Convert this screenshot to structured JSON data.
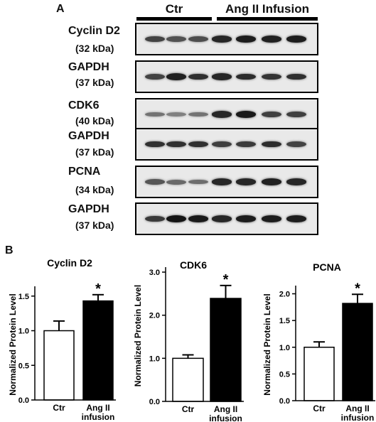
{
  "panelA": {
    "label": "A",
    "groups": [
      {
        "label": "Ctr"
      },
      {
        "label": "Ang II Infusion"
      }
    ],
    "blots": [
      {
        "name": "Cyclin D2",
        "kda": "(32 kDa)",
        "bands": [
          0.7,
          0.62,
          0.64,
          0.85,
          0.9,
          0.88,
          0.9
        ]
      },
      {
        "name": "GAPDH",
        "kda": "(37 kDa)",
        "bands": [
          0.7,
          0.88,
          0.8,
          0.85,
          0.82,
          0.78,
          0.8
        ]
      },
      {
        "name": "CDK6",
        "kda": "(40 kDa)",
        "bands": [
          0.45,
          0.38,
          0.45,
          0.85,
          0.92,
          0.72,
          0.72
        ]
      },
      {
        "name": "GAPDH",
        "kda": "(37 kDa)",
        "bands": [
          0.8,
          0.8,
          0.8,
          0.72,
          0.75,
          0.82,
          0.7
        ]
      },
      {
        "name": "PCNA",
        "kda": "(34 kDa)",
        "bands": [
          0.6,
          0.5,
          0.48,
          0.85,
          0.85,
          0.88,
          0.85
        ]
      },
      {
        "name": "GAPDH",
        "kda": "(37 kDa)",
        "bands": [
          0.75,
          0.95,
          0.92,
          0.85,
          0.9,
          0.9,
          0.9
        ]
      }
    ]
  },
  "panelB": {
    "label": "B",
    "ylabel": "Normalized Protein Level",
    "categories": [
      "Ctr",
      "Ang II infusion"
    ],
    "colors": {
      "ctr": "#ffffff",
      "ang": "#000000"
    }
  },
  "chart_data": [
    {
      "type": "bar",
      "title": "Cyclin D2",
      "ylabel": "Normalized Protein Level",
      "categories": [
        "Ctr",
        "Ang II infusion"
      ],
      "values": [
        1.0,
        1.43
      ],
      "errors": [
        0.14,
        0.09
      ],
      "significance": [
        "",
        "*"
      ],
      "ylim": [
        0,
        1.6
      ],
      "yticks": [
        0.0,
        0.5,
        1.0,
        1.5
      ]
    },
    {
      "type": "bar",
      "title": "CDK6",
      "ylabel": "Normalized Protein Level",
      "categories": [
        "Ctr",
        "Ang II infusion"
      ],
      "values": [
        1.0,
        2.39
      ],
      "errors": [
        0.08,
        0.3
      ],
      "significance": [
        "",
        "*"
      ],
      "ylim": [
        0,
        3.05
      ],
      "yticks": [
        0.0,
        1.0,
        2.0,
        3.0
      ]
    },
    {
      "type": "bar",
      "title": "PCNA",
      "ylabel": "Normalized Protein Level",
      "categories": [
        "Ctr",
        "Ang II infusion"
      ],
      "values": [
        1.0,
        1.82
      ],
      "errors": [
        0.1,
        0.17
      ],
      "significance": [
        "",
        "*"
      ],
      "ylim": [
        0,
        2.1
      ],
      "yticks": [
        0.0,
        0.5,
        1.0,
        1.5,
        2.0
      ]
    }
  ]
}
